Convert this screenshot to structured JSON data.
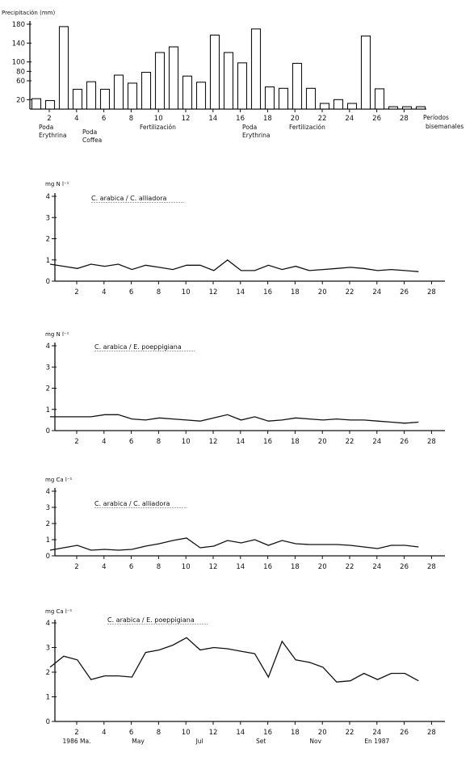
{
  "chart_data": [
    {
      "type": "bar",
      "ylabel": "Precipitación (mm)",
      "xlabel": "Períodos bisemanales",
      "ylim": [
        0,
        180
      ],
      "yticks": [
        20,
        60,
        80,
        100,
        140,
        180
      ],
      "categories": [
        "1",
        "2",
        "3",
        "4",
        "5",
        "6",
        "7",
        "8",
        "9",
        "10",
        "11",
        "12",
        "13",
        "14",
        "15",
        "16",
        "17",
        "18",
        "19",
        "20",
        "21",
        "22",
        "23",
        "24",
        "25",
        "26",
        "27",
        "28",
        "29"
      ],
      "xtick_labels": [
        "2",
        "4",
        "6",
        "8",
        "10",
        "12",
        "14",
        "16",
        "18",
        "20",
        "22",
        "24",
        "26",
        "28"
      ],
      "values": [
        22,
        18,
        175,
        42,
        58,
        42,
        72,
        55,
        78,
        120,
        132,
        70,
        57,
        157,
        120,
        98,
        170,
        47,
        44,
        97,
        44,
        12,
        20,
        12,
        155,
        43,
        5,
        5,
        5
      ],
      "annotations": [
        {
          "text": "Poda Erythrina",
          "at": 1
        },
        {
          "text": "Poda Coffea",
          "at": 5
        },
        {
          "text": "Fertilización",
          "at": 10
        },
        {
          "text": "Poda Erythrina",
          "at": 16
        },
        {
          "text": "Fertilización",
          "at": 20
        }
      ]
    },
    {
      "type": "line",
      "ylabel": "mg N l⁻¹",
      "title": "C. arabica / C. alliadora",
      "ylim": [
        0,
        4
      ],
      "yticks": [
        0,
        1,
        2,
        3,
        4
      ],
      "xtick_labels": [
        "2",
        "4",
        "6",
        "8",
        "10",
        "12",
        "14",
        "16",
        "18",
        "20",
        "22",
        "24",
        "26",
        "28"
      ],
      "x": [
        1,
        2,
        3,
        4,
        5,
        6,
        7,
        8,
        9,
        10,
        11,
        12,
        13,
        14,
        15,
        16,
        17,
        18,
        19,
        20,
        21,
        22,
        23,
        24,
        25,
        26,
        27,
        28
      ],
      "values": [
        0.8,
        0.7,
        0.6,
        0.8,
        0.7,
        0.8,
        0.55,
        0.75,
        0.65,
        0.55,
        0.75,
        0.75,
        0.5,
        1.0,
        0.5,
        0.5,
        0.75,
        0.55,
        0.7,
        0.5,
        0.55,
        0.6,
        0.65,
        0.6,
        0.5,
        0.55,
        0.5,
        0.45
      ]
    },
    {
      "type": "line",
      "ylabel": "mg N l⁻¹",
      "title": "C. arabica / E. poeppigiana",
      "ylim": [
        0,
        4
      ],
      "yticks": [
        0,
        1,
        2,
        3,
        4
      ],
      "xtick_labels": [
        "2",
        "4",
        "6",
        "8",
        "10",
        "12",
        "14",
        "16",
        "18",
        "20",
        "22",
        "24",
        "26",
        "28"
      ],
      "x": [
        1,
        2,
        3,
        4,
        5,
        6,
        7,
        8,
        9,
        10,
        11,
        12,
        13,
        14,
        15,
        16,
        17,
        18,
        19,
        20,
        21,
        22,
        23,
        24,
        25,
        26,
        27,
        28
      ],
      "values": [
        0.65,
        0.65,
        0.65,
        0.65,
        0.75,
        0.75,
        0.55,
        0.5,
        0.6,
        0.55,
        0.5,
        0.45,
        0.6,
        0.75,
        0.5,
        0.65,
        0.45,
        0.5,
        0.6,
        0.55,
        0.5,
        0.55,
        0.5,
        0.5,
        0.45,
        0.4,
        0.35,
        0.4
      ]
    },
    {
      "type": "line",
      "ylabel": "mg Ca l⁻¹",
      "title": "C. arabica / C. alliadora",
      "ylim": [
        0,
        4
      ],
      "yticks": [
        0,
        1,
        2,
        3,
        4
      ],
      "xtick_labels": [
        "2",
        "4",
        "6",
        "8",
        "10",
        "12",
        "14",
        "16",
        "18",
        "20",
        "22",
        "24",
        "26",
        "28"
      ],
      "x": [
        1,
        2,
        3,
        4,
        5,
        6,
        7,
        8,
        9,
        10,
        11,
        12,
        13,
        14,
        15,
        16,
        17,
        18,
        19,
        20,
        21,
        22,
        23,
        24,
        25,
        26,
        27,
        28
      ],
      "values": [
        0.35,
        0.5,
        0.65,
        0.35,
        0.4,
        0.35,
        0.4,
        0.6,
        0.75,
        0.95,
        1.1,
        0.5,
        0.6,
        0.95,
        0.8,
        1.0,
        0.65,
        0.95,
        0.75,
        0.7,
        0.7,
        0.7,
        0.65,
        0.55,
        0.45,
        0.65,
        0.65,
        0.55
      ]
    },
    {
      "type": "line",
      "ylabel": "mg Ca l⁻¹",
      "title": "C. arabica / E. poeppigiana",
      "ylim": [
        0,
        4
      ],
      "yticks": [
        0,
        1,
        2,
        3,
        4
      ],
      "xtick_labels": [
        "2",
        "4",
        "6",
        "8",
        "10",
        "12",
        "14",
        "16",
        "18",
        "20",
        "22",
        "24",
        "26",
        "28"
      ],
      "x": [
        1,
        2,
        3,
        4,
        5,
        6,
        7,
        8,
        9,
        10,
        11,
        12,
        13,
        14,
        15,
        16,
        17,
        18,
        19,
        20,
        21,
        22,
        23,
        24,
        25,
        26,
        27,
        28
      ],
      "values": [
        2.2,
        2.65,
        2.5,
        1.7,
        1.85,
        1.85,
        1.8,
        2.8,
        2.9,
        3.1,
        3.4,
        2.9,
        3.0,
        2.95,
        2.85,
        2.75,
        1.8,
        3.25,
        2.5,
        2.4,
        2.2,
        1.6,
        1.65,
        1.95,
        1.7,
        1.95,
        1.95,
        1.65
      ],
      "month_labels": [
        {
          "text": "1986 Ma.",
          "x": 2
        },
        {
          "text": "May",
          "x": 6.5
        },
        {
          "text": "Jul",
          "x": 11
        },
        {
          "text": "Set",
          "x": 15.5
        },
        {
          "text": "Nov",
          "x": 19.5
        },
        {
          "text": "En 1987",
          "x": 24
        }
      ]
    }
  ]
}
